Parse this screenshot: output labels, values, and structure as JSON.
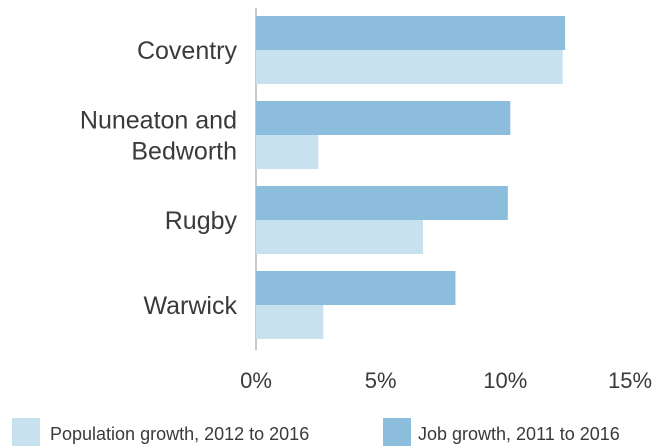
{
  "chart_data": {
    "type": "bar",
    "orientation": "horizontal",
    "categories": [
      [
        "Coventry"
      ],
      [
        "Nuneaton and",
        "Bedworth"
      ],
      [
        "Rugby"
      ],
      [
        "Warwick"
      ]
    ],
    "series": [
      {
        "name": "Job growth, 2011 to 2016",
        "values": [
          12.4,
          10.2,
          10.1,
          8.0
        ],
        "color": "#8dbddc"
      },
      {
        "name": "Population growth, 2012 to 2016",
        "values": [
          12.3,
          2.5,
          6.7,
          2.7
        ],
        "color": "#c7e1ef"
      }
    ],
    "xlim": [
      0,
      15
    ],
    "xticks": [
      0,
      5,
      10,
      15
    ],
    "xtick_labels": [
      "0%",
      "5%",
      "10%",
      "15%"
    ],
    "grid": false,
    "legend": {
      "placement": "bottom",
      "entries": [
        {
          "label": "Population growth, 2012 to 2016",
          "color": "#c7e1ef"
        },
        {
          "label": "Job growth, 2011 to 2016",
          "color": "#8dbddc"
        }
      ]
    }
  }
}
